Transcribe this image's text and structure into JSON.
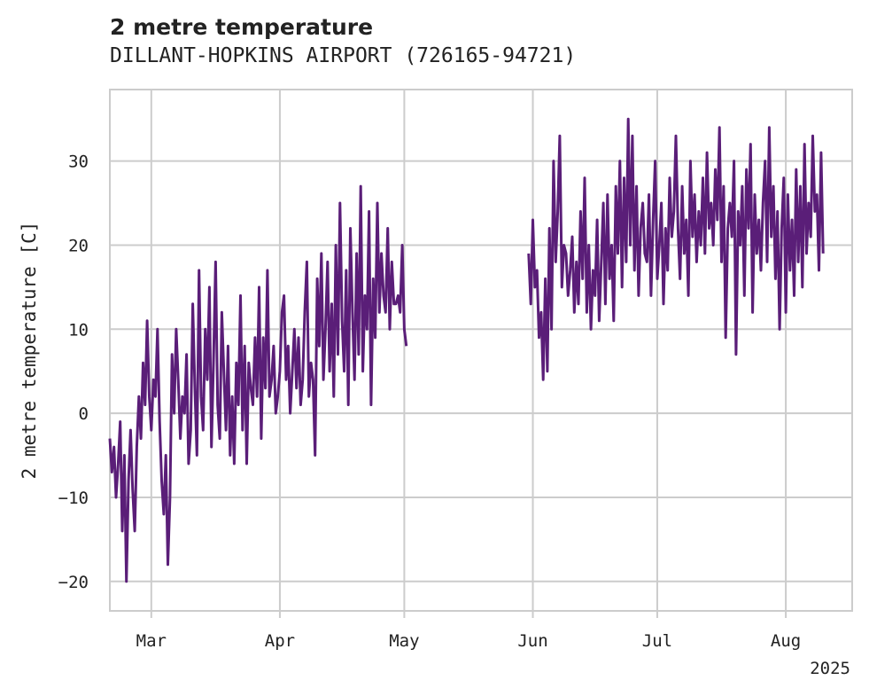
{
  "chart_data": {
    "type": "line",
    "title": "2 metre temperature",
    "subtitle": "DILLANT-HOPKINS AIRPORT (726165-94721)",
    "ylabel": "2 metre temperature [C]",
    "xlabel": "",
    "year_label": "2025",
    "xlim": [
      "2025-02-19",
      "2025-08-17"
    ],
    "ylim": [
      -23.5,
      38.5
    ],
    "yticks": [
      -20,
      -10,
      0,
      10,
      20,
      30
    ],
    "xticks": [
      {
        "date": "2025-03-01",
        "label": "Mar"
      },
      {
        "date": "2025-04-01",
        "label": "Apr"
      },
      {
        "date": "2025-05-01",
        "label": "May"
      },
      {
        "date": "2025-06-01",
        "label": "Jun"
      },
      {
        "date": "2025-07-01",
        "label": "Jul"
      },
      {
        "date": "2025-08-01",
        "label": "Aug"
      }
    ],
    "grid": true,
    "line_color": "#5a1e78",
    "series": [
      {
        "segments": [
          {
            "start": "2025-02-19",
            "step_days": 0.5,
            "values": [
              -3,
              -7,
              -4,
              -10,
              -6,
              -1,
              -14,
              -5,
              -20,
              -8,
              -2,
              -9,
              -14,
              -4,
              2,
              -3,
              6,
              1,
              11,
              2,
              -2,
              4,
              2,
              10,
              -1,
              -8,
              -12,
              -5,
              -18,
              -10,
              7,
              0,
              10,
              4,
              -3,
              2,
              0,
              7,
              -6,
              -2,
              13,
              3,
              -5,
              17,
              2,
              -2,
              10,
              4,
              15,
              -4,
              6,
              18,
              1,
              -3,
              12,
              5,
              -2,
              8,
              -5,
              2,
              -6,
              6,
              1,
              14,
              -2,
              8,
              -6,
              6,
              3,
              1,
              9,
              2,
              15,
              -3,
              9,
              3,
              17,
              2,
              4,
              8,
              0,
              2,
              5,
              12,
              14,
              4,
              8,
              0,
              5,
              10,
              3,
              9,
              1,
              4,
              12,
              18,
              2,
              6,
              4,
              -5,
              16,
              8,
              19,
              4,
              10,
              18,
              5,
              13,
              2,
              20,
              7,
              25,
              11,
              5,
              17,
              1,
              22,
              12,
              4,
              19,
              7,
              27,
              5,
              14,
              10,
              24,
              1,
              16,
              9,
              25,
              12,
              19,
              14,
              12,
              22,
              10,
              18,
              13,
              13,
              14,
              12,
              20,
              10,
              8
            ]
          },
          {
            "start": "2025-05-31",
            "step_days": 0.5,
            "values": [
              19,
              13,
              23,
              15,
              17,
              9,
              12,
              4,
              16,
              5,
              22,
              10,
              30,
              18,
              24,
              33,
              15,
              20,
              19,
              14,
              17,
              21,
              12,
              18,
              13,
              24,
              16,
              28,
              12,
              20,
              10,
              17,
              14,
              23,
              11,
              18,
              25,
              13,
              26,
              16,
              20,
              11,
              27,
              19,
              30,
              15,
              28,
              18,
              35,
              20,
              33,
              17,
              27,
              14,
              22,
              25,
              19,
              18,
              26,
              14,
              23,
              30,
              16,
              20,
              25,
              13,
              22,
              17,
              28,
              21,
              24,
              33,
              22,
              16,
              27,
              19,
              23,
              14,
              30,
              21,
              26,
              18,
              24,
              20,
              28,
              19,
              31,
              22,
              25,
              20,
              29,
              23,
              34,
              18,
              27,
              9,
              22,
              25,
              21,
              30,
              7,
              24,
              20,
              27,
              14,
              29,
              22,
              32,
              12,
              26,
              19,
              23,
              17,
              25,
              30,
              18,
              34,
              21,
              27,
              16,
              24,
              10,
              22,
              28,
              12,
              26,
              17,
              23,
              14,
              29,
              18,
              27,
              15,
              32,
              19,
              25,
              21,
              33,
              24,
              26,
              17,
              31,
              19
            ]
          }
        ]
      }
    ]
  }
}
